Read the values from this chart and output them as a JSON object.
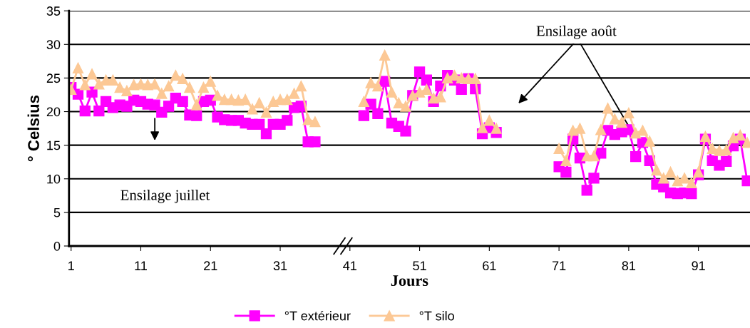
{
  "chart_data": {
    "type": "line",
    "xlabel": "Jours",
    "ylabel": "° Celsius",
    "x": [
      1,
      2,
      3,
      4,
      5,
      6,
      7,
      8,
      9,
      10,
      11,
      12,
      13,
      14,
      15,
      16,
      17,
      18,
      19,
      20,
      21,
      22,
      23,
      24,
      25,
      26,
      27,
      28,
      29,
      30,
      31,
      32,
      33,
      34,
      35,
      36,
      37,
      38,
      39,
      40,
      41,
      42,
      43,
      44,
      45,
      46,
      47,
      48,
      49,
      50,
      51,
      52,
      53,
      54,
      55,
      56,
      57,
      58,
      59,
      60,
      61,
      62,
      63,
      64,
      65,
      66,
      67,
      68,
      69,
      70,
      71,
      72,
      73,
      74,
      75,
      76,
      77,
      78,
      79,
      80,
      81,
      82,
      83,
      84,
      85,
      86,
      87,
      88,
      89,
      90,
      91,
      92,
      93,
      94,
      95,
      96,
      97,
      98
    ],
    "series": [
      {
        "name": "°T extérieur",
        "color": "#ff00ff",
        "marker": "square",
        "values": [
          23.6,
          22.6,
          20.1,
          22.9,
          20.1,
          21.5,
          20.6,
          21.0,
          20.8,
          21.7,
          21.5,
          21.1,
          21.0,
          19.9,
          20.8,
          22.0,
          21.5,
          19.5,
          19.4,
          21.5,
          21.7,
          19.2,
          18.8,
          18.7,
          18.7,
          18.3,
          18.1,
          18.1,
          16.7,
          18.1,
          18.1,
          18.7,
          20.6,
          20.8,
          15.5,
          15.5,
          null,
          null,
          null,
          null,
          null,
          null,
          19.4,
          21.1,
          19.7,
          24.5,
          18.3,
          17.8,
          17.1,
          22.4,
          25.9,
          24.7,
          21.5,
          23.8,
          25.4,
          24.7,
          23.3,
          24.9,
          23.4,
          16.7,
          17.6,
          16.9,
          null,
          null,
          null,
          null,
          null,
          null,
          null,
          null,
          11.8,
          11.0,
          15.9,
          13.1,
          8.3,
          10.1,
          13.8,
          17.2,
          16.6,
          17.0,
          17.3,
          13.3,
          15.4,
          12.7,
          9.2,
          8.8,
          7.9,
          7.8,
          7.9,
          7.8,
          10.6,
          15.9,
          12.7,
          12.0,
          12.6,
          14.9,
          15.9,
          9.7
        ]
      },
      {
        "name": "°T silo",
        "color": "#fcc895",
        "marker": "triangle",
        "values": [
          23.3,
          26.5,
          24.0,
          25.6,
          24.1,
          24.7,
          24.7,
          23.6,
          23.1,
          24.0,
          24.1,
          24.0,
          24.1,
          22.7,
          23.8,
          25.4,
          24.9,
          23.6,
          21.0,
          23.6,
          24.5,
          22.4,
          21.8,
          21.8,
          21.7,
          21.8,
          20.4,
          21.3,
          19.9,
          21.5,
          21.8,
          21.8,
          22.7,
          23.8,
          18.8,
          18.5,
          null,
          null,
          null,
          null,
          null,
          null,
          21.5,
          24.3,
          23.8,
          28.4,
          22.9,
          21.3,
          20.8,
          22.4,
          22.9,
          23.3,
          22.0,
          22.2,
          25.0,
          25.4,
          25.0,
          24.9,
          24.9,
          17.6,
          18.7,
          17.5,
          null,
          null,
          null,
          null,
          null,
          null,
          null,
          null,
          14.5,
          12.7,
          17.2,
          17.5,
          13.4,
          13.4,
          17.3,
          20.5,
          18.9,
          18.4,
          19.8,
          16.8,
          17.2,
          15.6,
          11.3,
          10.1,
          11.0,
          9.7,
          10.1,
          9.4,
          11.0,
          16.3,
          14.5,
          14.2,
          14.3,
          16.1,
          16.5,
          15.4
        ]
      }
    ],
    "xlim": [
      0.7,
      98.4
    ],
    "xticks": [
      1,
      11,
      21,
      31,
      41,
      51,
      61,
      71,
      81,
      91
    ],
    "ylim": [
      0,
      35
    ],
    "yticks": [
      0,
      5,
      10,
      15,
      20,
      25,
      30,
      35
    ],
    "grid": "y",
    "legend": "bottom",
    "line_style": "solid",
    "annotations": [
      "Ensilage juillet",
      {
        "text": "Ensilage août",
        "x": 81.8,
        "y": 16.4
      }
    ]
  }
}
